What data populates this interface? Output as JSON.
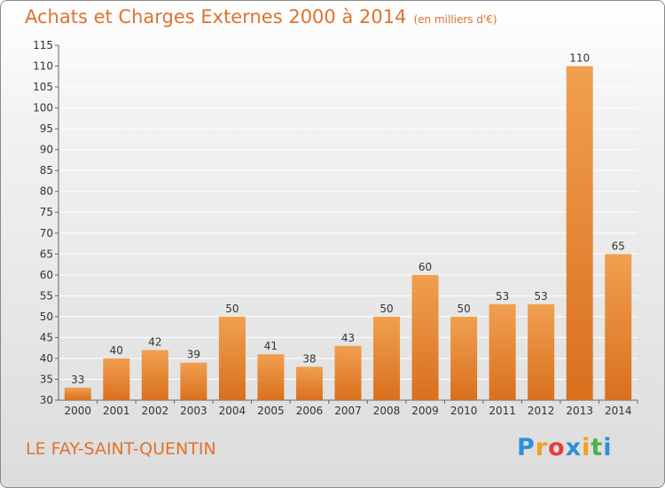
{
  "header": {
    "title": "Achats et Charges Externes 2000 à 2014",
    "unit": "(en milliers d'€)"
  },
  "footer": {
    "city": "LE FAY-SAINT-QUENTIN",
    "brand": [
      "P",
      "r",
      "o",
      "x",
      "i",
      "t",
      "i"
    ],
    "brand_colors": [
      "#2f8fd8",
      "#f0a020",
      "#e43d3d",
      "#2f8fd8",
      "#f0a020",
      "#4caf50",
      "#2f8fd8"
    ]
  },
  "chart_data": {
    "type": "bar",
    "title": "Achats et Charges Externes 2000 à 2014",
    "categories": [
      "2000",
      "2001",
      "2002",
      "2003",
      "2004",
      "2005",
      "2006",
      "2007",
      "2008",
      "2009",
      "2010",
      "2011",
      "2012",
      "2013",
      "2014"
    ],
    "values": [
      33,
      40,
      42,
      39,
      50,
      41,
      38,
      43,
      50,
      60,
      50,
      53,
      53,
      110,
      65
    ],
    "ylim": [
      30,
      115
    ],
    "yticks": [
      30,
      35,
      40,
      45,
      50,
      55,
      60,
      65,
      70,
      75,
      80,
      85,
      90,
      95,
      100,
      105,
      110,
      115
    ],
    "grid": true,
    "bar_color": "#f0a050",
    "bar_color_dark": "#d9701e"
  }
}
